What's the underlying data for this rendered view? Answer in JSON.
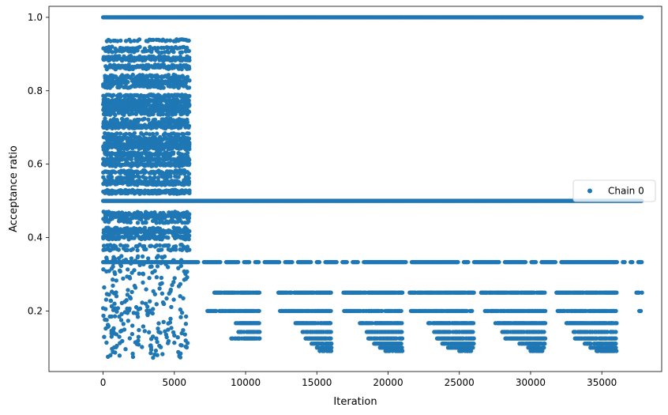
{
  "chart_data": {
    "type": "scatter",
    "title": "",
    "xlabel": "Iteration",
    "ylabel": "Acceptance ratio",
    "xlim": [
      -3800,
      39200
    ],
    "ylim": [
      0.035,
      1.03
    ],
    "xticks": [
      0,
      5000,
      10000,
      15000,
      20000,
      25000,
      30000,
      35000
    ],
    "yticks": [
      0.2,
      0.4,
      0.6,
      0.8,
      1.0
    ],
    "ytick_labels": [
      "0.2",
      "0.4",
      "0.6",
      "0.8",
      "1.0"
    ],
    "grid": false,
    "legend": {
      "position": "right",
      "entries": [
        "Chain 0"
      ]
    },
    "series": [
      {
        "name": "Chain 0",
        "color": "#1f77b4",
        "marker": "circle",
        "bands": [
          {
            "y": 1.0,
            "x_start": 0,
            "x_end": 37800,
            "density": "continuous"
          },
          {
            "y": 0.5,
            "x_start": 0,
            "x_end": 37800,
            "density": "continuous"
          },
          {
            "y": 0.333,
            "x_start": 0,
            "x_end": 37800,
            "density": "gapped"
          },
          {
            "y": 0.25,
            "segments": [
              [
                7800,
                11000
              ],
              [
                12200,
                16000
              ],
              [
                16800,
                21000
              ],
              [
                21500,
                26000
              ],
              [
                26500,
                31000
              ],
              [
                31800,
                36000
              ],
              [
                37400,
                37800
              ]
            ]
          },
          {
            "y": 0.2,
            "segments": [
              [
                7300,
                11000
              ],
              [
                12400,
                16000
              ],
              [
                16900,
                21000
              ],
              [
                21600,
                26000
              ],
              [
                26800,
                31000
              ],
              [
                31900,
                36000
              ],
              [
                37600,
                37700
              ]
            ]
          },
          {
            "y": 0.1667,
            "segments": [
              [
                9300,
                11000
              ],
              [
                13500,
                16000
              ],
              [
                18000,
                21000
              ],
              [
                22800,
                26000
              ],
              [
                27500,
                31000
              ],
              [
                32500,
                36000
              ]
            ]
          },
          {
            "y": 0.1429,
            "segments": [
              [
                9500,
                11000
              ],
              [
                14000,
                16000
              ],
              [
                18500,
                21000
              ],
              [
                23200,
                26000
              ],
              [
                28000,
                31000
              ],
              [
                33000,
                36000
              ]
            ]
          },
          {
            "y": 0.125,
            "segments": [
              [
                9000,
                11000
              ],
              [
                14200,
                16000
              ],
              [
                18600,
                21000
              ],
              [
                23400,
                26000
              ],
              [
                28200,
                31000
              ],
              [
                33100,
                36000
              ]
            ]
          },
          {
            "y": 0.111,
            "segments": [
              [
                14600,
                16000
              ],
              [
                19000,
                21000
              ],
              [
                23800,
                26000
              ],
              [
                29200,
                31000
              ],
              [
                33800,
                36000
              ]
            ]
          },
          {
            "y": 0.1,
            "segments": [
              [
                14800,
                16000
              ],
              [
                19400,
                21000
              ],
              [
                24200,
                26000
              ],
              [
                29800,
                30900
              ],
              [
                34200,
                36000
              ]
            ]
          },
          {
            "y": 0.0909,
            "segments": [
              [
                15200,
                16000
              ],
              [
                19800,
                21000
              ],
              [
                25000,
                25800
              ],
              [
                30000,
                30800
              ],
              [
                34600,
                36000
              ]
            ]
          }
        ],
        "burn_in": {
          "x_start": 0,
          "x_end": 6000,
          "y_range": [
            0.07,
            0.95
          ]
        }
      }
    ]
  }
}
